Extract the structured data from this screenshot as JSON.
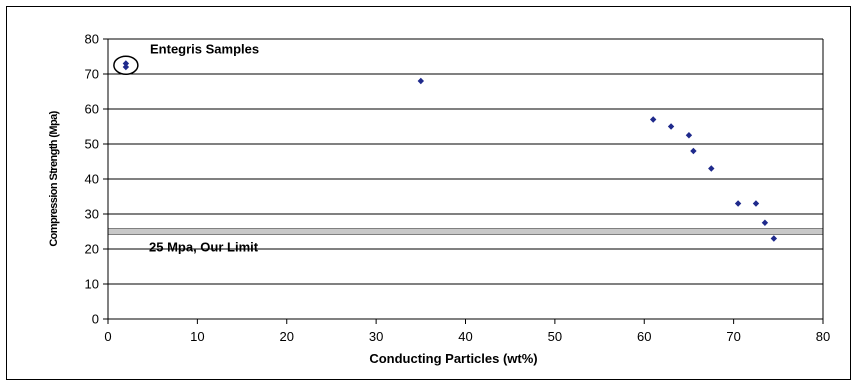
{
  "chart_data": {
    "type": "scatter",
    "title": "",
    "xlabel": "Conducting Particles (wt%)",
    "ylabel": "Compression Strength (Mpa)",
    "xlim": [
      0,
      80
    ],
    "ylim": [
      0,
      80
    ],
    "x_ticks": [
      "0",
      "10",
      "20",
      "30",
      "40",
      "50",
      "60",
      "70",
      "80"
    ],
    "y_ticks": [
      "0",
      "10",
      "20",
      "30",
      "40",
      "50",
      "60",
      "70",
      "80"
    ],
    "grid": "horizontal",
    "series": [
      {
        "color": "#1f2a8c",
        "marker": "diamond",
        "points": [
          {
            "x": 2,
            "y": 72
          },
          {
            "x": 2,
            "y": 73
          },
          {
            "x": 35,
            "y": 68
          },
          {
            "x": 61,
            "y": 57
          },
          {
            "x": 63,
            "y": 55
          },
          {
            "x": 65,
            "y": 52.5
          },
          {
            "x": 65.5,
            "y": 48
          },
          {
            "x": 67.5,
            "y": 43
          },
          {
            "x": 70.5,
            "y": 33
          },
          {
            "x": 72.5,
            "y": 33
          },
          {
            "x": 73.5,
            "y": 27.5
          },
          {
            "x": 74.5,
            "y": 23
          }
        ]
      }
    ],
    "reference_line": {
      "y": 25,
      "label": "25 Mpa, Our Limit",
      "color": "#808080"
    },
    "annotations": [
      {
        "text": "Entegris Samples",
        "marker": "circle",
        "x": 2,
        "y": 72.5
      }
    ]
  }
}
